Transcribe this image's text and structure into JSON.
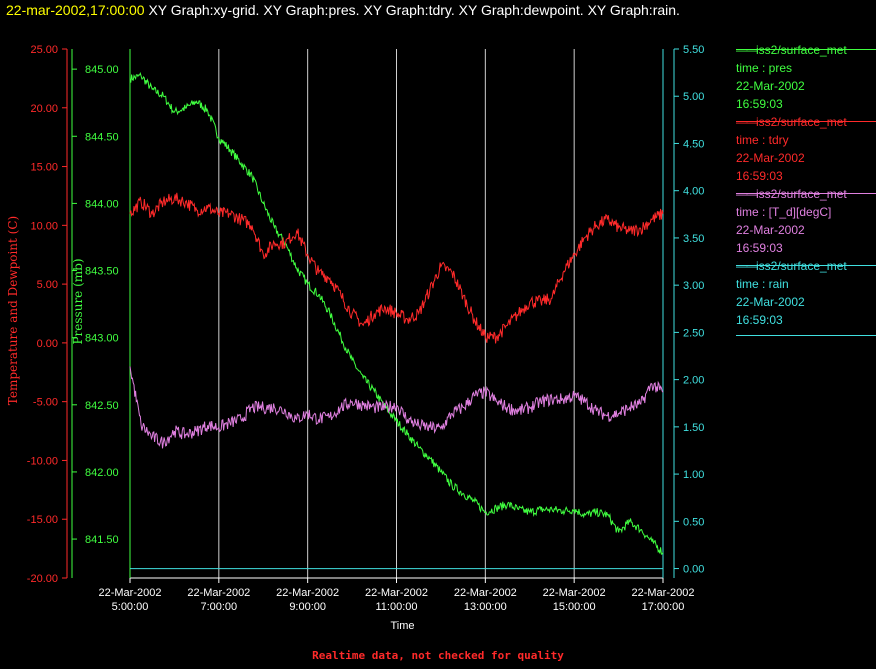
{
  "header": {
    "timestamp": "22-mar-2002,17:00:00",
    "graphs": "XY Graph:xy-grid.  XY Graph:pres.  XY Graph:tdry.  XY Graph:dewpoint.  XY Graph:rain."
  },
  "footer": "Realtime data, not checked for quality",
  "legend": [
    {
      "source": "iss2/surface_met",
      "var": "time : pres",
      "date": "22-Mar-2002",
      "time": "16:59:03",
      "color": "#40ff40"
    },
    {
      "source": "iss2/surface_met",
      "var": "time : tdry",
      "date": "22-Mar-2002",
      "time": "16:59:03",
      "color": "#ff2a2a"
    },
    {
      "source": "iss2/surface_met",
      "var": "time : [T_d][degC]",
      "date": "22-Mar-2002",
      "time": "16:59:03",
      "color": "#e080e0"
    },
    {
      "source": "iss2/surface_met",
      "var": "time : rain",
      "date": "22-Mar-2002",
      "time": "16:59:03",
      "color": "#40e0e0"
    }
  ],
  "chart_data": {
    "type": "line",
    "x_label": "Time",
    "x_ticks": [
      {
        "date": "22-Mar-2002",
        "time": "5:00:00"
      },
      {
        "date": "22-Mar-2002",
        "time": "7:00:00"
      },
      {
        "date": "22-Mar-2002",
        "time": "9:00:00"
      },
      {
        "date": "22-Mar-2002",
        "time": "11:00:00"
      },
      {
        "date": "22-Mar-2002",
        "time": "13:00:00"
      },
      {
        "date": "22-Mar-2002",
        "time": "15:00:00"
      },
      {
        "date": "22-Mar-2002",
        "time": "17:00:00"
      }
    ],
    "x_range_hours": [
      5,
      17
    ],
    "grid": "vertical",
    "axes": {
      "temp": {
        "label": "Temperature and Dewpoint (C)",
        "range": [
          -20,
          25
        ],
        "ticks": [
          "25.00",
          "20.00",
          "15.00",
          "10.00",
          "5.00",
          "0.00",
          "-5.00",
          "-10.00",
          "-15.00",
          "-20.00"
        ],
        "color": "#ff2a2a"
      },
      "pres": {
        "label": "Pressure (mb)",
        "range": [
          841.21,
          845.15
        ],
        "ticks": [
          "845.00",
          "844.50",
          "844.00",
          "843.50",
          "843.00",
          "842.50",
          "842.00",
          "841.50"
        ],
        "color": "#40ff40"
      },
      "rain": {
        "label": "",
        "range": [
          -0.1,
          5.5
        ],
        "ticks": [
          "5.50",
          "5.00",
          "4.50",
          "4.00",
          "3.50",
          "3.00",
          "2.50",
          "2.00",
          "1.50",
          "1.00",
          "0.50",
          "0.00"
        ],
        "color": "#40e0e0"
      }
    },
    "series": [
      {
        "name": "pres",
        "axis": "pres",
        "color": "#40ff40",
        "hours": [
          5.0,
          5.25,
          5.5,
          5.75,
          6.0,
          6.25,
          6.5,
          6.75,
          7.0,
          7.25,
          7.5,
          7.75,
          8.0,
          8.25,
          8.5,
          8.75,
          9.0,
          9.25,
          9.5,
          9.75,
          10.0,
          10.25,
          10.5,
          10.75,
          11.0,
          11.25,
          11.5,
          11.75,
          12.0,
          12.25,
          12.5,
          12.75,
          13.0,
          13.25,
          13.5,
          13.75,
          14.0,
          14.25,
          14.5,
          14.75,
          15.0,
          15.25,
          15.5,
          15.75,
          16.0,
          16.25,
          16.5,
          16.75,
          17.0
        ],
        "values": [
          844.93,
          844.95,
          844.85,
          844.8,
          844.68,
          844.71,
          844.76,
          844.69,
          844.49,
          844.4,
          844.3,
          844.2,
          844.0,
          843.82,
          843.7,
          843.52,
          843.4,
          843.32,
          843.18,
          843.0,
          842.83,
          842.7,
          842.6,
          842.48,
          842.38,
          842.28,
          842.18,
          842.1,
          842.0,
          841.9,
          841.84,
          841.78,
          841.7,
          841.73,
          841.76,
          841.72,
          841.7,
          841.72,
          841.72,
          841.71,
          841.72,
          841.68,
          841.7,
          841.68,
          841.55,
          841.63,
          841.57,
          841.48,
          841.4
        ]
      },
      {
        "name": "tdry",
        "axis": "temp",
        "color": "#ff2a2a",
        "hours": [
          5.0,
          5.25,
          5.5,
          5.75,
          6.0,
          6.25,
          6.5,
          6.75,
          7.0,
          7.25,
          7.5,
          7.75,
          8.0,
          8.25,
          8.5,
          8.75,
          9.0,
          9.25,
          9.5,
          9.75,
          10.0,
          10.25,
          10.5,
          10.75,
          11.0,
          11.25,
          11.5,
          11.75,
          12.0,
          12.25,
          12.5,
          12.75,
          13.0,
          13.25,
          13.5,
          13.75,
          14.0,
          14.25,
          14.5,
          14.75,
          15.0,
          15.25,
          15.5,
          15.75,
          16.0,
          16.25,
          16.5,
          16.75,
          17.0
        ],
        "values": [
          11.0,
          12.0,
          11.0,
          12.0,
          12.3,
          12.0,
          11.3,
          11.5,
          11.0,
          11.0,
          10.5,
          10.0,
          7.5,
          8.5,
          8.5,
          9.5,
          7.5,
          6.0,
          5.5,
          4.0,
          2.5,
          1.5,
          2.5,
          3.0,
          2.5,
          2.0,
          2.5,
          4.5,
          6.5,
          6.0,
          4.0,
          2.0,
          0.5,
          0.5,
          1.5,
          2.5,
          3.5,
          3.5,
          3.8,
          6.0,
          7.5,
          9.0,
          10.0,
          10.5,
          9.8,
          9.5,
          9.7,
          10.5,
          11.0
        ]
      },
      {
        "name": "[T_d][degC]",
        "axis": "temp",
        "color": "#e080e0",
        "hours": [
          5.0,
          5.25,
          5.5,
          5.75,
          6.0,
          6.25,
          6.5,
          6.75,
          7.0,
          7.25,
          7.5,
          7.75,
          8.0,
          8.25,
          8.5,
          8.75,
          9.0,
          9.25,
          9.5,
          9.75,
          10.0,
          10.25,
          10.5,
          10.75,
          11.0,
          11.25,
          11.5,
          11.75,
          12.0,
          12.25,
          12.5,
          12.75,
          13.0,
          13.25,
          13.5,
          13.75,
          14.0,
          14.25,
          14.5,
          14.75,
          15.0,
          15.25,
          15.5,
          15.75,
          16.0,
          16.25,
          16.5,
          16.75,
          17.0
        ],
        "values": [
          -2.0,
          -7.0,
          -8.0,
          -8.5,
          -7.5,
          -7.8,
          -7.5,
          -7.0,
          -7.2,
          -6.8,
          -6.5,
          -5.5,
          -5.5,
          -5.5,
          -5.8,
          -6.5,
          -6.0,
          -6.5,
          -6.3,
          -5.5,
          -5.0,
          -5.3,
          -5.5,
          -5.5,
          -5.3,
          -6.5,
          -7.0,
          -7.2,
          -7.3,
          -6.0,
          -5.5,
          -4.5,
          -4.2,
          -5.0,
          -5.5,
          -5.8,
          -5.5,
          -5.0,
          -4.8,
          -4.8,
          -4.5,
          -5.0,
          -5.8,
          -6.2,
          -6.0,
          -5.5,
          -5.2,
          -3.5,
          -4.2
        ]
      },
      {
        "name": "rain",
        "axis": "rain",
        "color": "#40e0e0",
        "hours": [
          5.0,
          17.0
        ],
        "values": [
          0.0,
          0.0
        ]
      }
    ]
  }
}
